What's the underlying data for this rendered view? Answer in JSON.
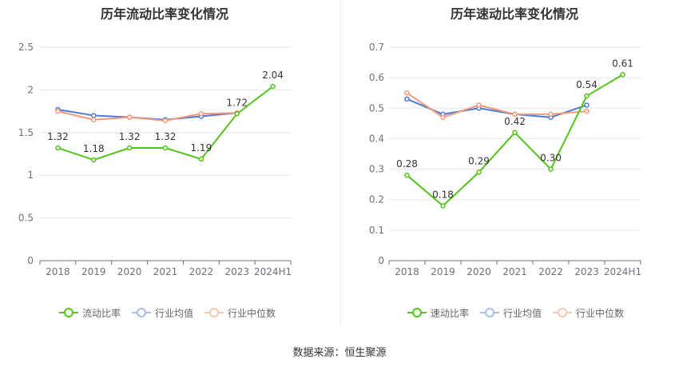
{
  "source_label": "数据来源：恒生聚源",
  "colors": {
    "main": "#52c41a",
    "avg": "#4a7bd6",
    "median": "#f4997a",
    "grid": "#e6e6e6",
    "axis": "#6e7079"
  },
  "chart_data": [
    {
      "type": "line",
      "title": "历年流动比率变化情况",
      "categories": [
        "2018",
        "2019",
        "2020",
        "2021",
        "2022",
        "2023",
        "2024H1"
      ],
      "ylim": [
        0,
        2.5
      ],
      "yticks": [
        "0",
        "0.5",
        "1",
        "1.5",
        "2",
        "2.5"
      ],
      "grid": true,
      "legend_position": "bottom",
      "series": [
        {
          "name": "流动比率",
          "values": [
            1.32,
            1.18,
            1.32,
            1.32,
            1.19,
            1.72,
            2.04
          ],
          "labels": [
            "1.32",
            "1.18",
            "1.32",
            "1.32",
            "1.19",
            "1.72",
            "2.04"
          ]
        },
        {
          "name": "行业均值",
          "values": [
            1.77,
            1.7,
            1.68,
            1.65,
            1.69,
            1.73,
            null
          ]
        },
        {
          "name": "行业中位数",
          "values": [
            1.75,
            1.65,
            1.68,
            1.64,
            1.72,
            1.73,
            null
          ]
        }
      ]
    },
    {
      "type": "line",
      "title": "历年速动比率变化情况",
      "categories": [
        "2018",
        "2019",
        "2020",
        "2021",
        "2022",
        "2023",
        "2024H1"
      ],
      "ylim": [
        0,
        0.7
      ],
      "yticks": [
        "0",
        "0.1",
        "0.2",
        "0.3",
        "0.4",
        "0.5",
        "0.6",
        "0.7"
      ],
      "grid": true,
      "legend_position": "bottom",
      "series": [
        {
          "name": "速动比率",
          "values": [
            0.28,
            0.18,
            0.29,
            0.42,
            0.3,
            0.54,
            0.61
          ],
          "labels": [
            "0.28",
            "0.18",
            "0.29",
            "0.42",
            "0.30",
            "0.54",
            "0.61"
          ]
        },
        {
          "name": "行业均值",
          "values": [
            0.53,
            0.48,
            0.5,
            0.48,
            0.47,
            0.51,
            null
          ]
        },
        {
          "name": "行业中位数",
          "values": [
            0.55,
            0.47,
            0.51,
            0.48,
            0.48,
            0.49,
            null
          ]
        }
      ]
    }
  ]
}
